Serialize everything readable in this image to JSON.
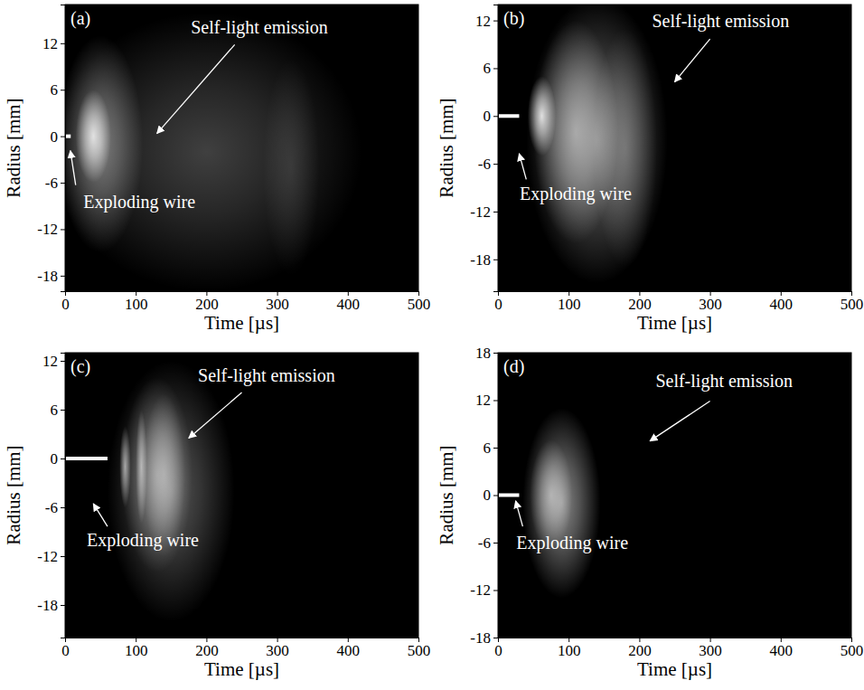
{
  "chart_data": [
    {
      "type": "image",
      "label": "(a)",
      "x_label": "Time [µs]",
      "y_label": "Radius [mm]",
      "xlim": [
        0,
        500
      ],
      "xticks": [
        0,
        100,
        200,
        300,
        400,
        500
      ],
      "ylim": [
        -20,
        17
      ],
      "yticks": [
        -18,
        -12,
        -6,
        0,
        6,
        12
      ],
      "wire": {
        "label": "Exploding wire",
        "time": [
          0,
          8
        ],
        "radius": 0
      },
      "emission": {
        "label": "Self-light emission",
        "regions": [
          {
            "time": 200,
            "radius": -2,
            "time_width": 220,
            "radius_width": 18,
            "intensity": 0.25
          },
          {
            "time": 320,
            "radius": -4,
            "time_width": 40,
            "radius_width": 14,
            "intensity": 0.12
          },
          {
            "time": 50,
            "radius": -1,
            "time_width": 60,
            "radius_width": 14,
            "intensity": 0.45
          },
          {
            "time": 40,
            "radius": 0,
            "time_width": 25,
            "radius_width": 6,
            "intensity": 0.8
          }
        ]
      }
    },
    {
      "type": "image",
      "label": "(b)",
      "x_label": "Time [µs]",
      "y_label": "Radius [mm]",
      "xlim": [
        0,
        500
      ],
      "xticks": [
        0,
        100,
        200,
        300,
        400,
        500
      ],
      "ylim": [
        -22,
        14
      ],
      "yticks": [
        -18,
        -12,
        -6,
        0,
        6,
        12
      ],
      "wire": {
        "label": "Exploding wire",
        "time": [
          0,
          30
        ],
        "radius": 0
      },
      "emission": {
        "label": "Self-light emission",
        "regions": [
          {
            "time": 140,
            "radius": -3,
            "time_width": 100,
            "radius_width": 18,
            "intensity": 0.45
          },
          {
            "time": 180,
            "radius": -4,
            "time_width": 45,
            "radius_width": 15,
            "intensity": 0.25
          },
          {
            "time": 110,
            "radius": -2,
            "time_width": 60,
            "radius_width": 14,
            "intensity": 0.5
          },
          {
            "time": 62,
            "radius": 0,
            "time_width": 20,
            "radius_width": 5,
            "intensity": 0.85
          }
        ]
      }
    },
    {
      "type": "image",
      "label": "(c)",
      "x_label": "Time [µs]",
      "y_label": "Radius [mm]",
      "xlim": [
        0,
        500
      ],
      "xticks": [
        0,
        100,
        200,
        300,
        400,
        500
      ],
      "ylim": [
        -22,
        13
      ],
      "yticks": [
        -18,
        -12,
        -6,
        0,
        6,
        12
      ],
      "wire": {
        "label": "Exploding wire",
        "time": [
          0,
          60
        ],
        "radius": 0
      },
      "emission": {
        "label": "Self-light emission",
        "regions": [
          {
            "time": 150,
            "radius": -4,
            "time_width": 90,
            "radius_width": 16,
            "intensity": 0.35
          },
          {
            "time": 130,
            "radius": -2,
            "time_width": 50,
            "radius_width": 12,
            "intensity": 0.4
          },
          {
            "time": 140,
            "radius": -2,
            "time_width": 30,
            "radius_width": 10,
            "intensity": 0.35
          },
          {
            "time": 85,
            "radius": -1,
            "time_width": 8,
            "radius_width": 5,
            "intensity": 0.6
          },
          {
            "time": 108,
            "radius": -1,
            "time_width": 8,
            "radius_width": 7,
            "intensity": 0.55
          }
        ]
      }
    },
    {
      "type": "image",
      "label": "(d)",
      "x_label": "Time [µs]",
      "y_label": "Radius [mm]",
      "xlim": [
        0,
        500
      ],
      "xticks": [
        0,
        100,
        200,
        300,
        400,
        500
      ],
      "ylim": [
        -18,
        18
      ],
      "yticks": [
        -18,
        -12,
        -6,
        0,
        6,
        12,
        18
      ],
      "wire": {
        "label": "Exploding wire",
        "time": [
          0,
          30
        ],
        "radius": 0
      },
      "emission": {
        "label": "Self-light emission",
        "regions": [
          {
            "time": 90,
            "radius": -1,
            "time_width": 55,
            "radius_width": 12,
            "intensity": 0.55
          },
          {
            "time": 75,
            "radius": 0,
            "time_width": 30,
            "radius_width": 7,
            "intensity": 0.5
          }
        ]
      }
    }
  ]
}
